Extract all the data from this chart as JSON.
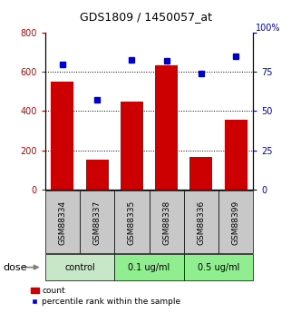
{
  "title": "GDS1809 / 1450057_at",
  "categories": [
    "GSM88334",
    "GSM88337",
    "GSM88335",
    "GSM88338",
    "GSM88336",
    "GSM88399"
  ],
  "bar_values": [
    550,
    150,
    450,
    635,
    165,
    355
  ],
  "scatter_values": [
    80,
    57,
    83,
    82,
    74,
    85
  ],
  "bar_color": "#cc0000",
  "scatter_color": "#0000cc",
  "left_ylim": [
    0,
    800
  ],
  "left_yticks": [
    0,
    200,
    400,
    600,
    800
  ],
  "right_ylim": [
    0,
    100
  ],
  "right_yticks": [
    0,
    25,
    50,
    75,
    100
  ],
  "dose_groups": [
    {
      "label": "control",
      "start": 0,
      "end": 2,
      "color": "#c8e6c8"
    },
    {
      "label": "0.1 ug/ml",
      "start": 2,
      "end": 4,
      "color": "#90ee90"
    },
    {
      "label": "0.5 ug/ml",
      "start": 4,
      "end": 6,
      "color": "#90ee90"
    }
  ],
  "dose_label": "dose",
  "legend_bar_label": "count",
  "legend_scatter_label": "percentile rank within the sample",
  "left_tick_color": "#cc0000",
  "right_tick_color": "#0000cc",
  "xlabel_area_color": "#c8c8c8",
  "figsize": [
    3.21,
    3.45
  ],
  "dpi": 100
}
